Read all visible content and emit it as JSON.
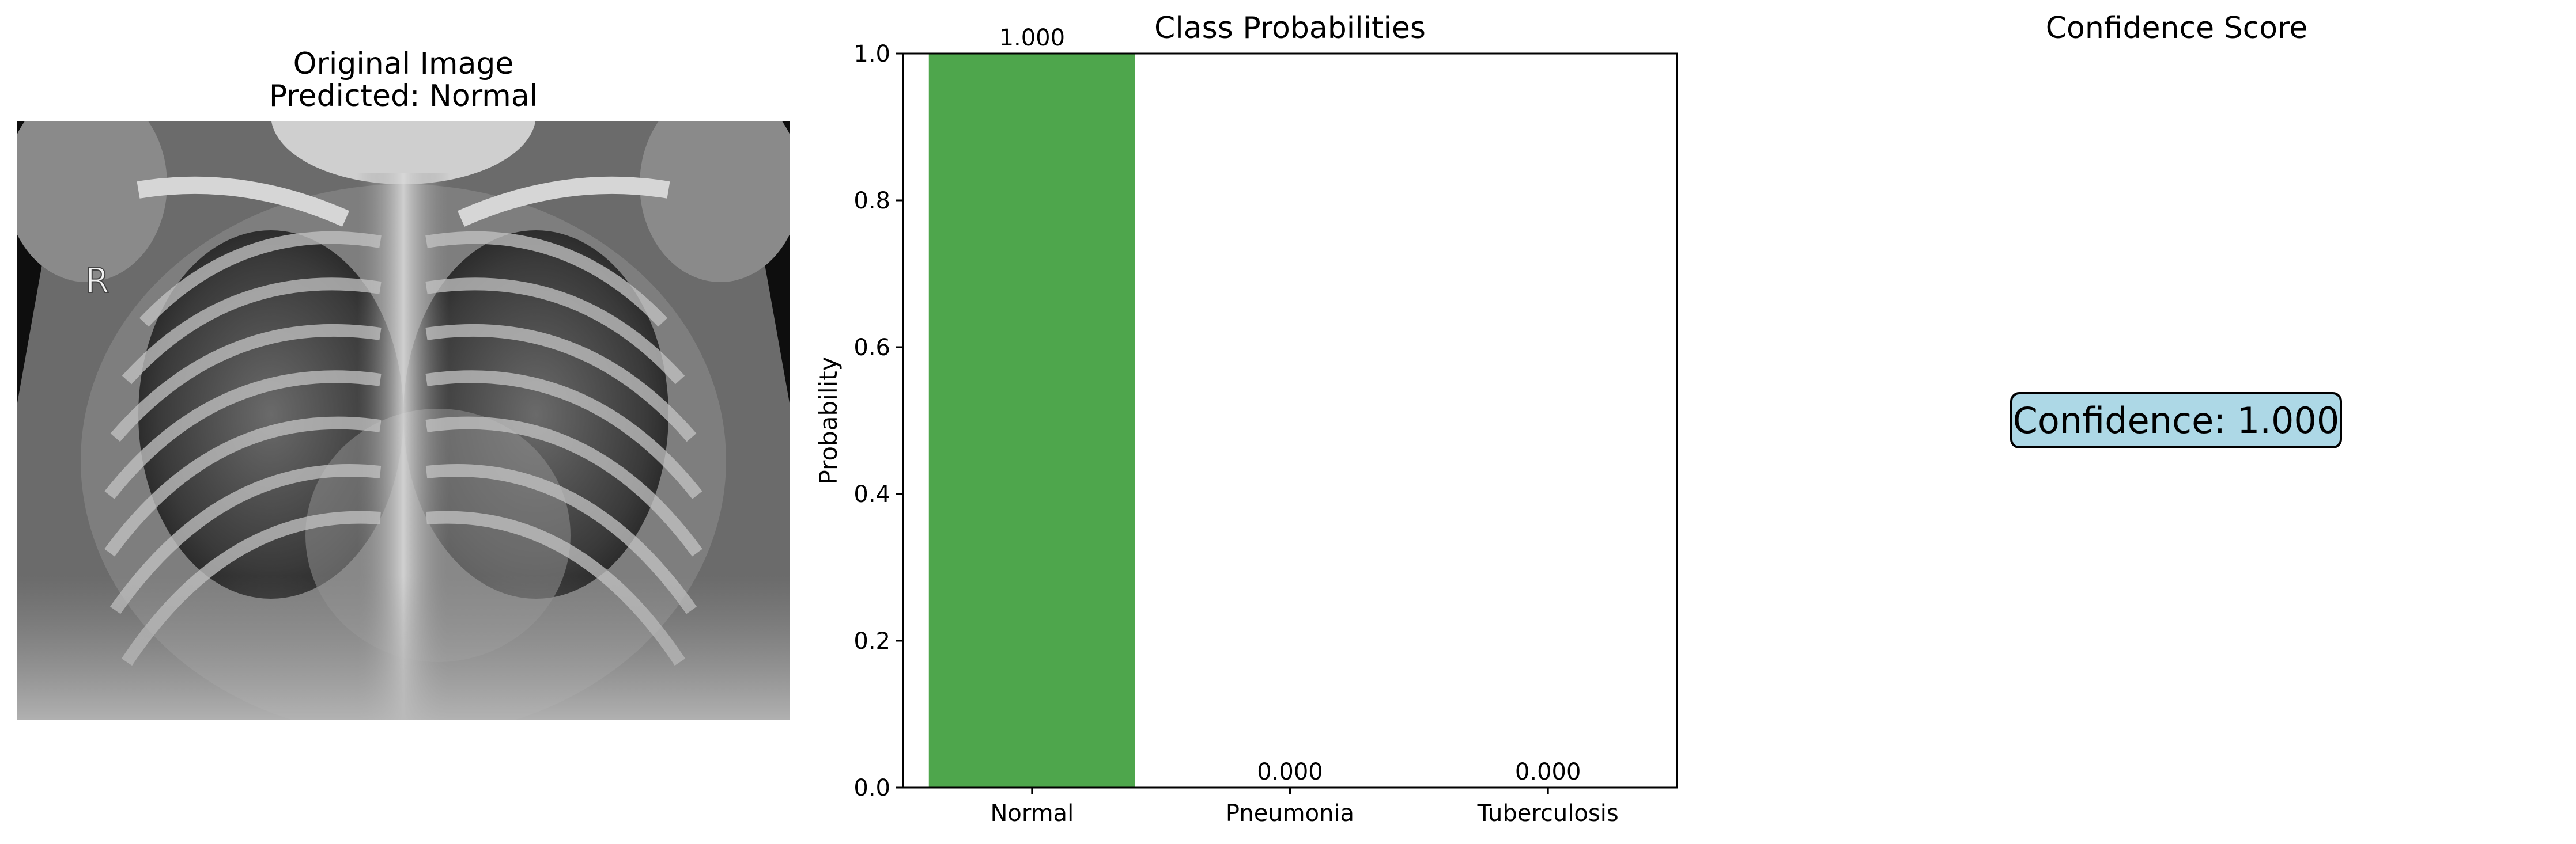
{
  "panels": {
    "image": {
      "title_line1": "Original Image",
      "title_line2": "Predicted: Normal",
      "marker_letter": "R"
    },
    "confidence": {
      "title": "Confidence Score",
      "text": "Confidence: 1.000",
      "box_color": "#add8e6"
    }
  },
  "chart_data": {
    "type": "bar",
    "title": "Class Probabilities",
    "xlabel": "",
    "ylabel": "Probability",
    "categories": [
      "Normal",
      "Pneumonia",
      "Tuberculosis"
    ],
    "values": [
      1.0,
      0.0,
      0.0
    ],
    "value_labels": [
      "1.000",
      "0.000",
      "0.000"
    ],
    "ylim": [
      0,
      1.0
    ],
    "yticks": [
      0.0,
      0.2,
      0.4,
      0.6,
      0.8,
      1.0
    ],
    "ytick_labels": [
      "0.0",
      "0.2",
      "0.4",
      "0.6",
      "0.8",
      "1.0"
    ],
    "bar_color": "#4ea64c",
    "grid": false,
    "legend": "none"
  }
}
